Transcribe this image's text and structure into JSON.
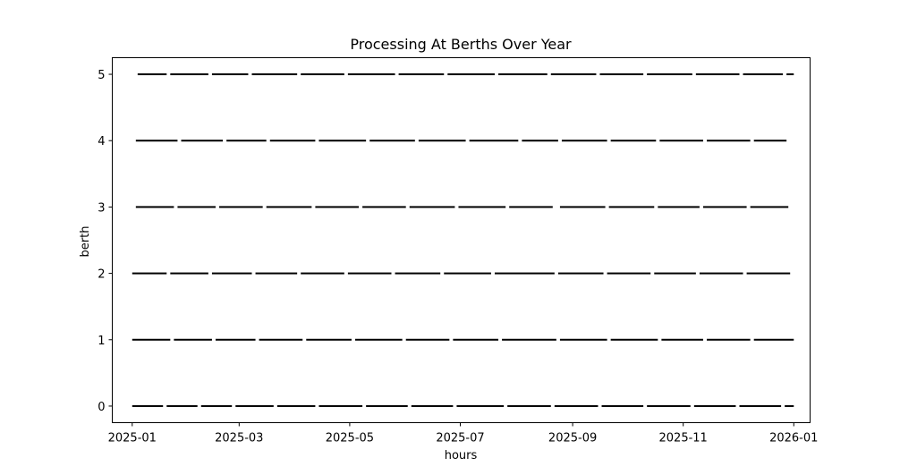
{
  "chart_data": {
    "type": "timeline",
    "title": "Processing At Berths Over Year",
    "xlabel": "hours",
    "ylabel": "berth",
    "xlim": [
      "2024-12-21",
      "2026-01-10"
    ],
    "ylim": [
      -0.25,
      5.25
    ],
    "x_ticks": [
      "2025-01",
      "2025-03",
      "2025-05",
      "2025-07",
      "2025-09",
      "2025-11",
      "2026-01"
    ],
    "y_ticks": [
      0,
      1,
      2,
      3,
      4,
      5
    ],
    "grid": false,
    "legend": "none",
    "bar_color": "#000000",
    "series": [
      {
        "berth": 0,
        "intervals": [
          [
            "2025-01-01",
            "2025-01-18"
          ],
          [
            "2025-01-20",
            "2025-02-06"
          ],
          [
            "2025-02-08",
            "2025-02-25"
          ],
          [
            "2025-02-27",
            "2025-03-20"
          ],
          [
            "2025-03-22",
            "2025-04-12"
          ],
          [
            "2025-04-14",
            "2025-05-08"
          ],
          [
            "2025-05-10",
            "2025-06-02"
          ],
          [
            "2025-06-04",
            "2025-06-27"
          ],
          [
            "2025-06-29",
            "2025-07-25"
          ],
          [
            "2025-07-27",
            "2025-08-20"
          ],
          [
            "2025-08-22",
            "2025-09-15"
          ],
          [
            "2025-09-17",
            "2025-10-10"
          ],
          [
            "2025-10-12",
            "2025-11-05"
          ],
          [
            "2025-11-07",
            "2025-11-30"
          ],
          [
            "2025-12-02",
            "2025-12-25"
          ],
          [
            "2025-12-27",
            "2026-01-01"
          ]
        ]
      },
      {
        "berth": 1,
        "intervals": [
          [
            "2025-01-01",
            "2025-01-22"
          ],
          [
            "2025-01-24",
            "2025-02-14"
          ],
          [
            "2025-02-16",
            "2025-03-10"
          ],
          [
            "2025-03-12",
            "2025-04-05"
          ],
          [
            "2025-04-07",
            "2025-05-02"
          ],
          [
            "2025-05-04",
            "2025-05-30"
          ],
          [
            "2025-06-01",
            "2025-06-25"
          ],
          [
            "2025-06-27",
            "2025-07-22"
          ],
          [
            "2025-07-24",
            "2025-08-23"
          ],
          [
            "2025-08-25",
            "2025-09-20"
          ],
          [
            "2025-09-22",
            "2025-10-18"
          ],
          [
            "2025-10-20",
            "2025-11-12"
          ],
          [
            "2025-11-14",
            "2025-12-08"
          ],
          [
            "2025-12-10",
            "2026-01-01"
          ]
        ]
      },
      {
        "berth": 2,
        "intervals": [
          [
            "2025-01-01",
            "2025-01-20"
          ],
          [
            "2025-01-22",
            "2025-02-12"
          ],
          [
            "2025-02-14",
            "2025-03-08"
          ],
          [
            "2025-03-10",
            "2025-04-02"
          ],
          [
            "2025-04-04",
            "2025-04-28"
          ],
          [
            "2025-04-30",
            "2025-05-24"
          ],
          [
            "2025-05-26",
            "2025-06-20"
          ],
          [
            "2025-06-22",
            "2025-07-18"
          ],
          [
            "2025-07-20",
            "2025-08-22"
          ],
          [
            "2025-08-24",
            "2025-09-18"
          ],
          [
            "2025-09-20",
            "2025-10-14"
          ],
          [
            "2025-10-16",
            "2025-11-08"
          ],
          [
            "2025-11-10",
            "2025-12-04"
          ],
          [
            "2025-12-06",
            "2025-12-30"
          ]
        ]
      },
      {
        "berth": 3,
        "intervals": [
          [
            "2025-01-03",
            "2025-01-24"
          ],
          [
            "2025-01-26",
            "2025-02-16"
          ],
          [
            "2025-02-18",
            "2025-03-14"
          ],
          [
            "2025-03-16",
            "2025-04-10"
          ],
          [
            "2025-04-12",
            "2025-05-06"
          ],
          [
            "2025-05-08",
            "2025-06-01"
          ],
          [
            "2025-06-03",
            "2025-06-28"
          ],
          [
            "2025-06-30",
            "2025-07-26"
          ],
          [
            "2025-07-28",
            "2025-08-21"
          ],
          [
            "2025-08-25",
            "2025-09-19"
          ],
          [
            "2025-09-21",
            "2025-10-16"
          ],
          [
            "2025-10-18",
            "2025-11-10"
          ],
          [
            "2025-11-12",
            "2025-12-06"
          ],
          [
            "2025-12-08",
            "2025-12-29"
          ]
        ]
      },
      {
        "berth": 4,
        "intervals": [
          [
            "2025-01-03",
            "2025-01-26"
          ],
          [
            "2025-01-28",
            "2025-02-20"
          ],
          [
            "2025-02-22",
            "2025-03-16"
          ],
          [
            "2025-03-18",
            "2025-04-12"
          ],
          [
            "2025-04-14",
            "2025-05-10"
          ],
          [
            "2025-05-12",
            "2025-06-06"
          ],
          [
            "2025-06-08",
            "2025-07-04"
          ],
          [
            "2025-07-06",
            "2025-08-02"
          ],
          [
            "2025-08-04",
            "2025-08-24"
          ],
          [
            "2025-08-26",
            "2025-09-20"
          ],
          [
            "2025-09-22",
            "2025-10-17"
          ],
          [
            "2025-10-19",
            "2025-11-12"
          ],
          [
            "2025-11-14",
            "2025-12-08"
          ],
          [
            "2025-12-10",
            "2025-12-28"
          ]
        ]
      },
      {
        "berth": 5,
        "intervals": [
          [
            "2025-01-04",
            "2025-01-20"
          ],
          [
            "2025-01-22",
            "2025-02-12"
          ],
          [
            "2025-02-14",
            "2025-03-06"
          ],
          [
            "2025-03-08",
            "2025-04-02"
          ],
          [
            "2025-04-04",
            "2025-04-28"
          ],
          [
            "2025-04-30",
            "2025-05-26"
          ],
          [
            "2025-05-28",
            "2025-06-22"
          ],
          [
            "2025-06-24",
            "2025-07-20"
          ],
          [
            "2025-07-22",
            "2025-08-18"
          ],
          [
            "2025-08-20",
            "2025-09-14"
          ],
          [
            "2025-09-16",
            "2025-10-10"
          ],
          [
            "2025-10-12",
            "2025-11-06"
          ],
          [
            "2025-11-08",
            "2025-12-02"
          ],
          [
            "2025-12-04",
            "2025-12-26"
          ],
          [
            "2025-12-28",
            "2026-01-01"
          ]
        ]
      }
    ]
  }
}
